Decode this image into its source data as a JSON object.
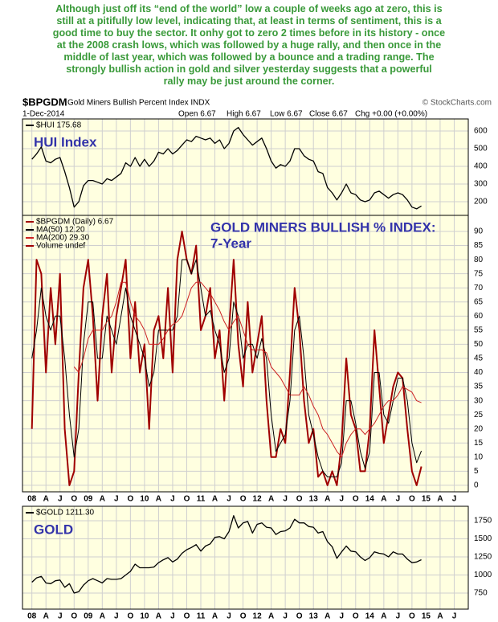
{
  "annotation": [
    "Although just off its “end of the world” low a couple of weeks ago at zero, this is",
    "still at a pitifully low level, indicating that, at least in terms of sentiment, this is a",
    "good time to buy the sector. It onhy got to zero 2 times before in its history - once",
    "at the 2008 crash lows, which was followed by a huge rally, and then once in the",
    "middle of last year, which was followed by a bounce and a trading range. The",
    "strongly bullish action in gold and silver yesterday suggests that a powerful",
    "rally may be just around the corner."
  ],
  "header": {
    "symbol": "$BPGDM",
    "name": "Gold Miners Bullish Percent Index INDX",
    "source": "© StockCharts.com",
    "date": "1-Dec-2014",
    "open": "Open 6.67",
    "high": "High 6.67",
    "low": "Low 6.67",
    "close": "Close 6.67",
    "change": "Chg +0.00 (+0.00%)"
  },
  "chart_data": [
    {
      "type": "line",
      "label": "HUI Index",
      "x": [
        "2008-01",
        "2008-02",
        "2008-03",
        "2008-04",
        "2008-05",
        "2008-06",
        "2008-07",
        "2008-08",
        "2008-09",
        "2008-10",
        "2008-11",
        "2008-12",
        "2009-01",
        "2009-02",
        "2009-03",
        "2009-04",
        "2009-05",
        "2009-06",
        "2009-07",
        "2009-08",
        "2009-09",
        "2009-10",
        "2009-11",
        "2009-12",
        "2010-01",
        "2010-02",
        "2010-03",
        "2010-04",
        "2010-05",
        "2010-06",
        "2010-07",
        "2010-08",
        "2010-09",
        "2010-10",
        "2010-11",
        "2010-12",
        "2011-01",
        "2011-02",
        "2011-03",
        "2011-04",
        "2011-05",
        "2011-06",
        "2011-07",
        "2011-08",
        "2011-09",
        "2011-10",
        "2011-11",
        "2011-12",
        "2012-01",
        "2012-02",
        "2012-03",
        "2012-04",
        "2012-05",
        "2012-06",
        "2012-07",
        "2012-08",
        "2012-09",
        "2012-10",
        "2012-11",
        "2012-12",
        "2013-01",
        "2013-02",
        "2013-03",
        "2013-04",
        "2013-05",
        "2013-06",
        "2013-07",
        "2013-08",
        "2013-09",
        "2013-10",
        "2013-11",
        "2013-12",
        "2014-01",
        "2014-02",
        "2014-03",
        "2014-04",
        "2014-05",
        "2014-06",
        "2014-07",
        "2014-08",
        "2014-09",
        "2014-10",
        "2014-11",
        "2014-12"
      ],
      "xlim": [
        "2007-11",
        "2015-10"
      ],
      "series": [
        {
          "name": "$HUI 175.68",
          "color": "#000000",
          "values": [
            440,
            470,
            510,
            430,
            420,
            440,
            450,
            370,
            280,
            170,
            200,
            290,
            320,
            320,
            310,
            300,
            330,
            320,
            340,
            360,
            420,
            400,
            450,
            400,
            440,
            400,
            430,
            480,
            470,
            500,
            470,
            490,
            520,
            550,
            540,
            570,
            560,
            550,
            560,
            530,
            550,
            500,
            530,
            600,
            620,
            580,
            550,
            520,
            540,
            560,
            500,
            430,
            390,
            410,
            400,
            430,
            500,
            500,
            460,
            440,
            430,
            370,
            360,
            280,
            250,
            210,
            250,
            300,
            250,
            240,
            210,
            200,
            210,
            250,
            260,
            240,
            220,
            240,
            250,
            240,
            210,
            170,
            160,
            176
          ]
        }
      ],
      "ylim": [
        123,
        668
      ],
      "yticks": [
        200,
        300,
        400,
        500,
        600
      ],
      "grid": true
    },
    {
      "type": "line",
      "label": [
        "GOLD MINERS BULLISH % INDEX:",
        "7-Year"
      ],
      "legend_extra": "Volume undef",
      "x": [
        "2008-01",
        "2008-02",
        "2008-03",
        "2008-04",
        "2008-05",
        "2008-06",
        "2008-07",
        "2008-08",
        "2008-09",
        "2008-10",
        "2008-11",
        "2008-12",
        "2009-01",
        "2009-02",
        "2009-03",
        "2009-04",
        "2009-05",
        "2009-06",
        "2009-07",
        "2009-08",
        "2009-09",
        "2009-10",
        "2009-11",
        "2009-12",
        "2010-01",
        "2010-02",
        "2010-03",
        "2010-04",
        "2010-05",
        "2010-06",
        "2010-07",
        "2010-08",
        "2010-09",
        "2010-10",
        "2010-11",
        "2010-12",
        "2011-01",
        "2011-02",
        "2011-03",
        "2011-04",
        "2011-05",
        "2011-06",
        "2011-07",
        "2011-08",
        "2011-09",
        "2011-10",
        "2011-11",
        "2011-12",
        "2012-01",
        "2012-02",
        "2012-03",
        "2012-04",
        "2012-05",
        "2012-06",
        "2012-07",
        "2012-08",
        "2012-09",
        "2012-10",
        "2012-11",
        "2012-12",
        "2013-01",
        "2013-02",
        "2013-03",
        "2013-04",
        "2013-05",
        "2013-06",
        "2013-07",
        "2013-08",
        "2013-09",
        "2013-10",
        "2013-11",
        "2013-12",
        "2014-01",
        "2014-02",
        "2014-03",
        "2014-04",
        "2014-05",
        "2014-06",
        "2014-07",
        "2014-08",
        "2014-09",
        "2014-10",
        "2014-11",
        "2014-12"
      ],
      "xlim": [
        "2007-11",
        "2015-10"
      ],
      "xticks": [
        {
          "value": "2008-01",
          "label": "08"
        },
        {
          "value": "2008-04",
          "label": "A"
        },
        {
          "value": "2008-07",
          "label": "J"
        },
        {
          "value": "2008-10",
          "label": "O"
        },
        {
          "value": "2009-01",
          "label": "09"
        },
        {
          "value": "2009-04",
          "label": "A"
        },
        {
          "value": "2009-07",
          "label": "J"
        },
        {
          "value": "2009-10",
          "label": "O"
        },
        {
          "value": "2010-01",
          "label": "10"
        },
        {
          "value": "2010-04",
          "label": "A"
        },
        {
          "value": "2010-07",
          "label": "J"
        },
        {
          "value": "2010-10",
          "label": "O"
        },
        {
          "value": "2011-01",
          "label": "11"
        },
        {
          "value": "2011-04",
          "label": "A"
        },
        {
          "value": "2011-07",
          "label": "J"
        },
        {
          "value": "2011-10",
          "label": "O"
        },
        {
          "value": "2012-01",
          "label": "12"
        },
        {
          "value": "2012-04",
          "label": "A"
        },
        {
          "value": "2012-07",
          "label": "J"
        },
        {
          "value": "2012-10",
          "label": "O"
        },
        {
          "value": "2013-01",
          "label": "13"
        },
        {
          "value": "2013-04",
          "label": "A"
        },
        {
          "value": "2013-07",
          "label": "J"
        },
        {
          "value": "2013-10",
          "label": "O"
        },
        {
          "value": "2014-01",
          "label": "14"
        },
        {
          "value": "2014-04",
          "label": "A"
        },
        {
          "value": "2014-07",
          "label": "J"
        },
        {
          "value": "2014-10",
          "label": "O"
        },
        {
          "value": "2015-01",
          "label": "15"
        },
        {
          "value": "2015-04",
          "label": "A"
        },
        {
          "value": "2015-07",
          "label": "J"
        }
      ],
      "series": [
        {
          "name": "$BPGDM (Daily) 6.67",
          "color": "#a00000",
          "width": 2,
          "values": [
            20,
            80,
            75,
            40,
            70,
            50,
            75,
            20,
            0,
            5,
            40,
            70,
            80,
            60,
            30,
            60,
            75,
            40,
            60,
            70,
            80,
            45,
            65,
            40,
            50,
            20,
            55,
            60,
            45,
            70,
            40,
            80,
            90,
            80,
            75,
            85,
            55,
            60,
            70,
            45,
            55,
            30,
            55,
            80,
            50,
            35,
            65,
            40,
            50,
            60,
            30,
            10,
            10,
            20,
            15,
            40,
            70,
            55,
            30,
            15,
            20,
            3,
            5,
            0,
            5,
            0,
            15,
            45,
            25,
            20,
            5,
            5,
            20,
            55,
            35,
            15,
            25,
            35,
            40,
            38,
            20,
            5,
            0,
            6.67
          ]
        },
        {
          "name": "MA(50) 12.20",
          "color": "#000000",
          "width": 1,
          "values": [
            45,
            55,
            70,
            60,
            55,
            60,
            60,
            45,
            25,
            10,
            20,
            50,
            65,
            65,
            45,
            45,
            60,
            55,
            50,
            60,
            70,
            60,
            55,
            50,
            45,
            35,
            40,
            55,
            55,
            55,
            55,
            60,
            80,
            80,
            75,
            80,
            70,
            60,
            62,
            55,
            50,
            40,
            45,
            65,
            60,
            45,
            50,
            50,
            45,
            52,
            45,
            25,
            12,
            15,
            18,
            30,
            55,
            60,
            45,
            25,
            18,
            10,
            5,
            3,
            3,
            3,
            8,
            30,
            30,
            22,
            12,
            6,
            12,
            40,
            40,
            25,
            22,
            30,
            38,
            38,
            30,
            15,
            8,
            12.2
          ]
        },
        {
          "name": "MA(200) 29.30",
          "color": "#cc2222",
          "width": 1,
          "values": [
            null,
            null,
            null,
            null,
            null,
            null,
            null,
            null,
            null,
            42,
            40,
            45,
            52,
            55,
            55,
            55,
            58,
            60,
            65,
            72,
            72,
            65,
            60,
            58,
            55,
            50,
            50,
            50,
            52,
            55,
            57,
            58,
            60,
            65,
            70,
            72,
            72,
            70,
            68,
            65,
            62,
            58,
            55,
            58,
            60,
            55,
            50,
            48,
            48,
            48,
            47,
            42,
            40,
            38,
            35,
            32,
            32,
            32,
            35,
            32,
            28,
            25,
            20,
            18,
            15,
            12,
            10,
            15,
            18,
            20,
            20,
            18,
            20,
            22,
            25,
            28,
            30,
            30,
            32,
            35,
            34,
            33,
            30,
            29.3
          ]
        }
      ],
      "ylim": [
        -2.3,
        95.7
      ],
      "yticks": [
        0,
        5,
        10,
        15,
        20,
        25,
        30,
        35,
        40,
        45,
        50,
        55,
        60,
        65,
        70,
        75,
        80,
        85,
        90
      ],
      "grid": true
    },
    {
      "type": "line",
      "label": "GOLD",
      "x": [
        "2008-01",
        "2008-02",
        "2008-03",
        "2008-04",
        "2008-05",
        "2008-06",
        "2008-07",
        "2008-08",
        "2008-09",
        "2008-10",
        "2008-11",
        "2008-12",
        "2009-01",
        "2009-02",
        "2009-03",
        "2009-04",
        "2009-05",
        "2009-06",
        "2009-07",
        "2009-08",
        "2009-09",
        "2009-10",
        "2009-11",
        "2009-12",
        "2010-01",
        "2010-02",
        "2010-03",
        "2010-04",
        "2010-05",
        "2010-06",
        "2010-07",
        "2010-08",
        "2010-09",
        "2010-10",
        "2010-11",
        "2010-12",
        "2011-01",
        "2011-02",
        "2011-03",
        "2011-04",
        "2011-05",
        "2011-06",
        "2011-07",
        "2011-08",
        "2011-09",
        "2011-10",
        "2011-11",
        "2011-12",
        "2012-01",
        "2012-02",
        "2012-03",
        "2012-04",
        "2012-05",
        "2012-06",
        "2012-07",
        "2012-08",
        "2012-09",
        "2012-10",
        "2012-11",
        "2012-12",
        "2013-01",
        "2013-02",
        "2013-03",
        "2013-04",
        "2013-05",
        "2013-06",
        "2013-07",
        "2013-08",
        "2013-09",
        "2013-10",
        "2013-11",
        "2013-12",
        "2014-01",
        "2014-02",
        "2014-03",
        "2014-04",
        "2014-05",
        "2014-06",
        "2014-07",
        "2014-08",
        "2014-09",
        "2014-10",
        "2014-11",
        "2014-12"
      ],
      "xlim": [
        "2007-11",
        "2015-10"
      ],
      "xticks": [
        {
          "value": "2008-01",
          "label": "08"
        },
        {
          "value": "2008-04",
          "label": "A"
        },
        {
          "value": "2008-07",
          "label": "J"
        },
        {
          "value": "2008-10",
          "label": "O"
        },
        {
          "value": "2009-01",
          "label": "09"
        },
        {
          "value": "2009-04",
          "label": "A"
        },
        {
          "value": "2009-07",
          "label": "J"
        },
        {
          "value": "2009-10",
          "label": "O"
        },
        {
          "value": "2010-01",
          "label": "10"
        },
        {
          "value": "2010-04",
          "label": "A"
        },
        {
          "value": "2010-07",
          "label": "J"
        },
        {
          "value": "2010-10",
          "label": "O"
        },
        {
          "value": "2011-01",
          "label": "11"
        },
        {
          "value": "2011-04",
          "label": "A"
        },
        {
          "value": "2011-07",
          "label": "J"
        },
        {
          "value": "2011-10",
          "label": "O"
        },
        {
          "value": "2012-01",
          "label": "12"
        },
        {
          "value": "2012-04",
          "label": "A"
        },
        {
          "value": "2012-07",
          "label": "J"
        },
        {
          "value": "2012-10",
          "label": "O"
        },
        {
          "value": "2013-01",
          "label": "13"
        },
        {
          "value": "2013-04",
          "label": "A"
        },
        {
          "value": "2013-07",
          "label": "J"
        },
        {
          "value": "2013-10",
          "label": "O"
        },
        {
          "value": "2014-01",
          "label": "14"
        },
        {
          "value": "2014-04",
          "label": "A"
        },
        {
          "value": "2014-07",
          "label": "J"
        },
        {
          "value": "2014-10",
          "label": "O"
        },
        {
          "value": "2015-01",
          "label": "15"
        },
        {
          "value": "2015-04",
          "label": "A"
        },
        {
          "value": "2015-07",
          "label": "J"
        }
      ],
      "series": [
        {
          "name": "$GOLD 1211.30",
          "color": "#000000",
          "values": [
            900,
            960,
            980,
            890,
            880,
            920,
            930,
            830,
            880,
            750,
            770,
            860,
            920,
            950,
            920,
            890,
            950,
            940,
            940,
            950,
            1000,
            1050,
            1150,
            1100,
            1100,
            1100,
            1110,
            1170,
            1210,
            1240,
            1180,
            1220,
            1300,
            1350,
            1380,
            1420,
            1330,
            1400,
            1430,
            1520,
            1530,
            1500,
            1600,
            1820,
            1650,
            1720,
            1740,
            1580,
            1700,
            1720,
            1660,
            1650,
            1560,
            1600,
            1610,
            1650,
            1770,
            1720,
            1720,
            1670,
            1660,
            1580,
            1600,
            1460,
            1390,
            1230,
            1320,
            1400,
            1330,
            1320,
            1250,
            1200,
            1240,
            1320,
            1300,
            1290,
            1250,
            1320,
            1290,
            1290,
            1220,
            1170,
            1180,
            1211
          ]
        }
      ],
      "ylim": [
        528,
        1950
      ],
      "yticks": [
        750,
        1000,
        1250,
        1500,
        1750
      ],
      "grid": true
    }
  ]
}
